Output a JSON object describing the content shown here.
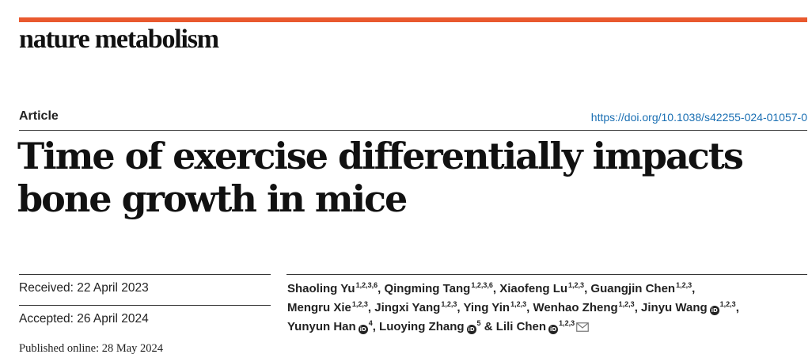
{
  "journal": "nature metabolism",
  "brand_color": "#e9592e",
  "link_color": "#1a6fb3",
  "article_type": "Article",
  "doi": "https://doi.org/10.1038/s42255-024-01057-0",
  "title": "Time of exercise differentially impacts bone growth in mice",
  "dates": {
    "received": "Received: 22 April 2023",
    "accepted": "Accepted: 26 April 2024",
    "published": "Published online: 28 May 2024"
  },
  "authors": [
    {
      "name": "Shaoling Yu",
      "aff": "1,2,3,6",
      "orcid": false
    },
    {
      "name": "Qingming Tang",
      "aff": "1,2,3,6",
      "orcid": false
    },
    {
      "name": "Xiaofeng Lu",
      "aff": "1,2,3",
      "orcid": false
    },
    {
      "name": "Guangjin Chen",
      "aff": "1,2,3",
      "orcid": false
    },
    {
      "name": "Mengru Xie",
      "aff": "1,2,3",
      "orcid": false
    },
    {
      "name": "Jingxi Yang",
      "aff": "1,2,3",
      "orcid": false
    },
    {
      "name": "Ying Yin",
      "aff": "1,2,3",
      "orcid": false
    },
    {
      "name": "Wenhao Zheng",
      "aff": "1,2,3",
      "orcid": false
    },
    {
      "name": "Jinyu Wang",
      "aff": "1,2,3",
      "orcid": true
    },
    {
      "name": "Yunyun Han",
      "aff": "4",
      "orcid": true
    },
    {
      "name": "Luoying Zhang",
      "aff": "5",
      "orcid": true
    },
    {
      "name": "Lili Chen",
      "aff": "1,2,3",
      "orcid": true
    }
  ],
  "separators": {
    "comma": ",",
    "and": "&"
  },
  "orcid_label": "iD",
  "icons": {
    "orcid": "orcid-icon",
    "correspondence": "envelope-icon"
  }
}
